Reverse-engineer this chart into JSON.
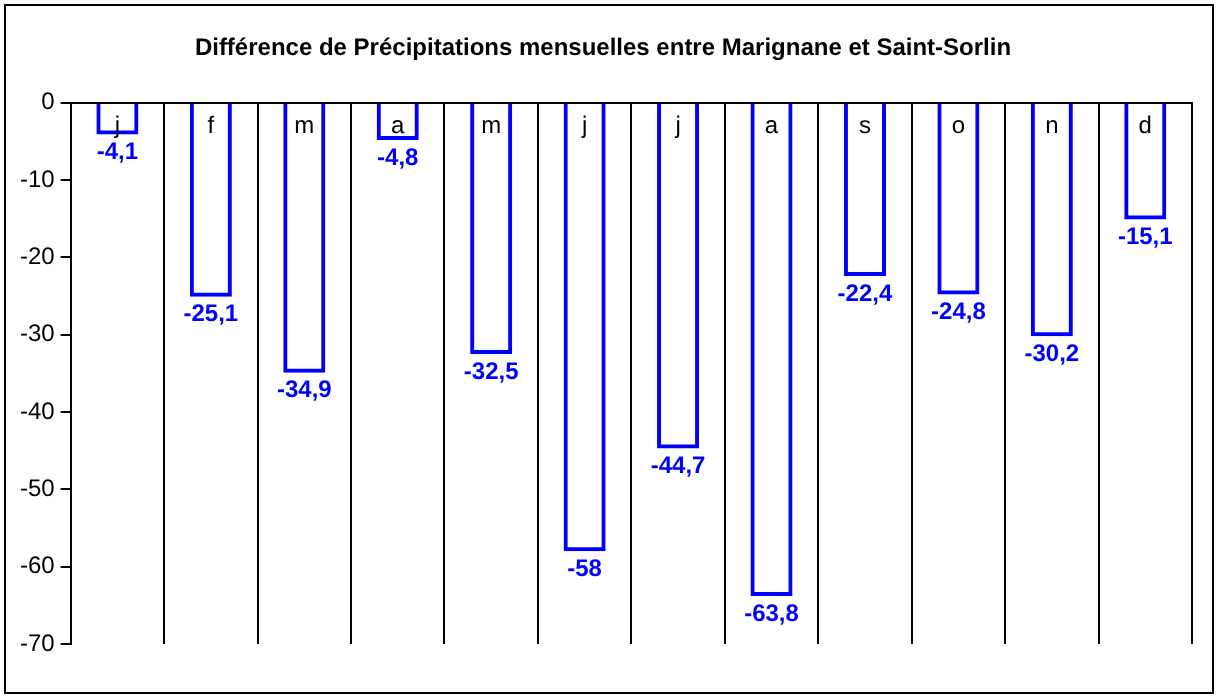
{
  "chart_data": {
    "type": "bar",
    "title": "Différence de Précipitations mensuelles entre Marignane et Saint-Sorlin",
    "categories": [
      "j",
      "f",
      "m",
      "a",
      "m",
      "j",
      "j",
      "a",
      "s",
      "o",
      "n",
      "d"
    ],
    "values": [
      -4.1,
      -25.1,
      -34.9,
      -4.8,
      -32.5,
      -58,
      -44.7,
      -63.8,
      -22.4,
      -24.8,
      -30.2,
      -15.1
    ],
    "value_labels": [
      "-4,1",
      "-25,1",
      "-34,9",
      "-4,8",
      "-32,5",
      "-58",
      "-44,7",
      "-63,8",
      "-22,4",
      "-24,8",
      "-30,2",
      "-15,1"
    ],
    "color": "#0000ff",
    "ylim": [
      -70,
      0
    ],
    "yticks": [
      -70,
      -60,
      -50,
      -40,
      -30,
      -20,
      -10,
      0
    ],
    "grid": "x",
    "legend": false
  }
}
